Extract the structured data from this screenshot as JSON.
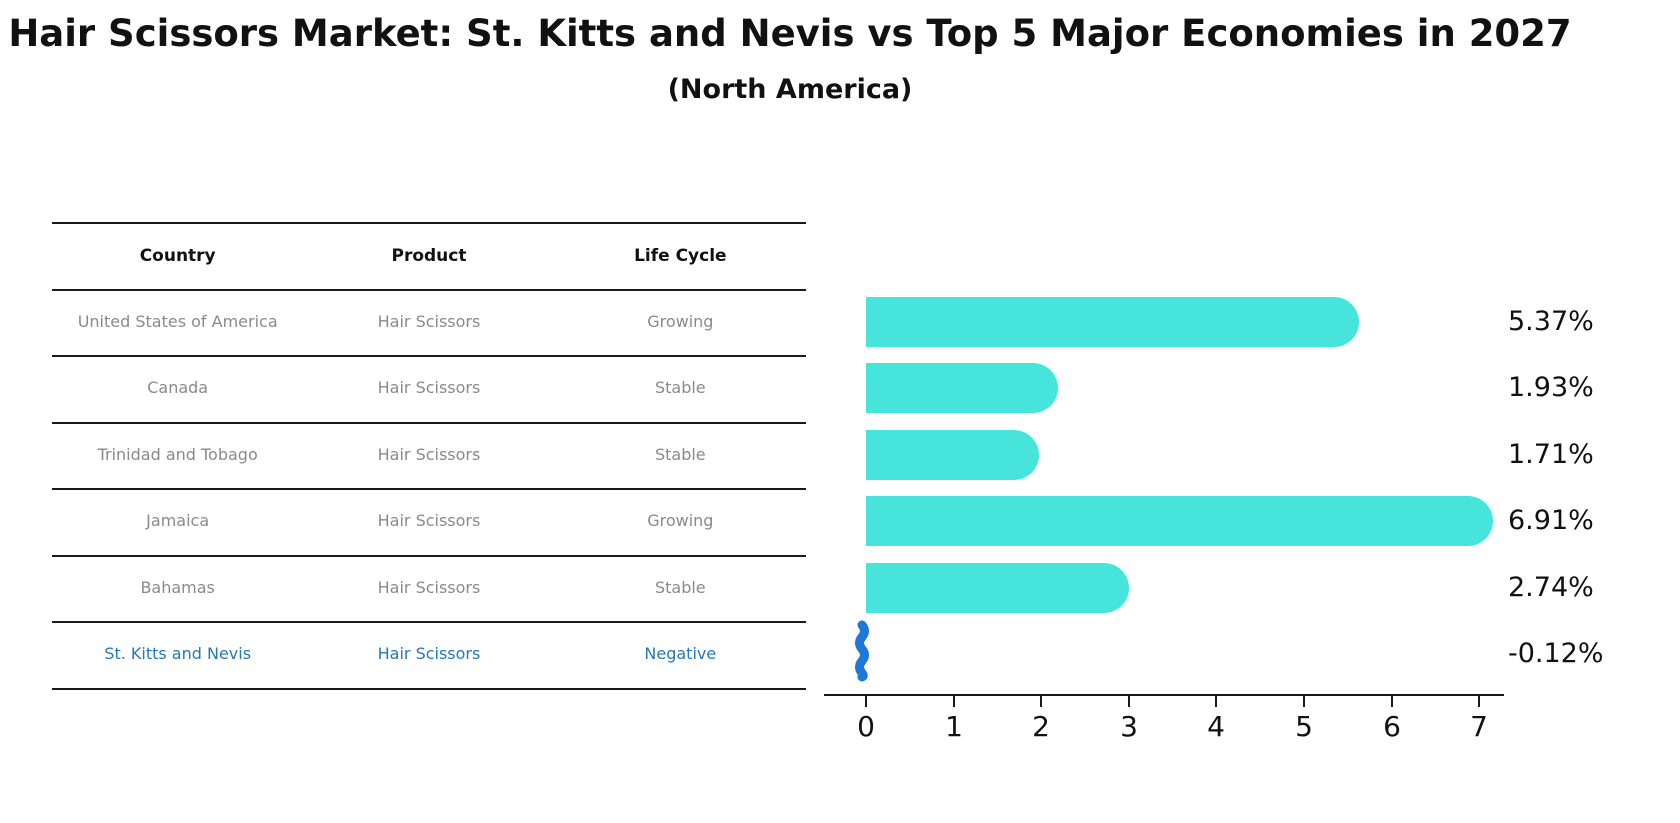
{
  "title": "Hair Scissors Market: St. Kitts and Nevis vs Top 5 Major Economies in 2027",
  "subtitle": "(North America)",
  "table": {
    "headers": [
      "Country",
      "Product",
      "Life Cycle"
    ],
    "rows": [
      {
        "country": "United States of America",
        "product": "Hair Scissors",
        "life_cycle": "Growing",
        "highlight": false
      },
      {
        "country": "Canada",
        "product": "Hair Scissors",
        "life_cycle": "Stable",
        "highlight": false
      },
      {
        "country": "Trinidad and Tobago",
        "product": "Hair Scissors",
        "life_cycle": "Stable",
        "highlight": false
      },
      {
        "country": "Jamaica",
        "product": "Hair Scissors",
        "life_cycle": "Growing",
        "highlight": false
      },
      {
        "country": "Bahamas",
        "product": "Hair Scissors",
        "life_cycle": "Stable",
        "highlight": false
      },
      {
        "country": "St. Kitts and Nevis",
        "product": "Hair Scissors",
        "life_cycle": "Negative",
        "highlight": true
      }
    ]
  },
  "chart_data": {
    "type": "bar",
    "orientation": "horizontal",
    "categories": [
      "United States of America",
      "Canada",
      "Trinidad and Tobago",
      "Jamaica",
      "Bahamas",
      "St. Kitts and Nevis"
    ],
    "values": [
      5.37,
      1.93,
      1.71,
      6.91,
      2.74,
      -0.12
    ],
    "value_labels": [
      "5.37%",
      "1.93%",
      "1.71%",
      "6.91%",
      "2.74%",
      "-0.12%"
    ],
    "xticks": [
      "0",
      "1",
      "2",
      "3",
      "4",
      "5",
      "6",
      "7"
    ],
    "xlim": [
      0,
      7.3
    ],
    "grid": false,
    "legend": false,
    "bar_color": "#47E4DC",
    "negative_bar_color": "#1E78D7",
    "highlight_text_color": "#2577BE"
  }
}
